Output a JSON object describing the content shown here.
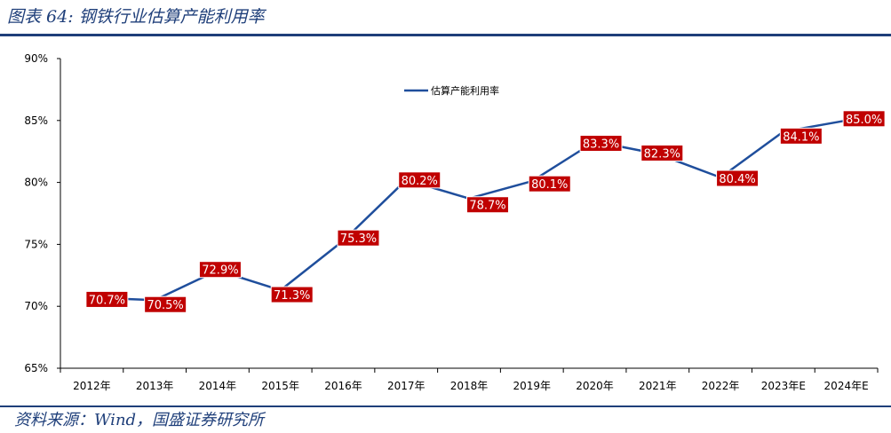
{
  "figure": {
    "title": "图表 64:  钢铁行业估算产能利用率",
    "source": "资料来源：Wind，国盛证券研究所"
  },
  "colors": {
    "line": "#1f4e9c",
    "label_bg": "#c00000",
    "label_border": "#ffffff",
    "rule": "#1f3f7a"
  },
  "chart_data": {
    "type": "line",
    "title": "",
    "xlabel": "",
    "ylabel": "",
    "categories": [
      "2012年",
      "2013年",
      "2014年",
      "2015年",
      "2016年",
      "2017年",
      "2018年",
      "2019年",
      "2020年",
      "2021年",
      "2022年",
      "2023年E",
      "2024年E"
    ],
    "series": [
      {
        "name": "估算产能利用率",
        "values": [
          70.7,
          70.5,
          72.9,
          71.3,
          75.3,
          80.2,
          78.7,
          80.1,
          83.3,
          82.3,
          80.4,
          84.1,
          85.0
        ],
        "labels": [
          "70.7%",
          "70.5%",
          "72.9%",
          "71.3%",
          "75.3%",
          "80.2%",
          "78.7%",
          "80.1%",
          "83.3%",
          "82.3%",
          "80.4%",
          "84.1%",
          "85.0%"
        ]
      }
    ],
    "ylim": [
      65,
      90
    ],
    "yticks": [
      65,
      70,
      75,
      80,
      85,
      90
    ],
    "ytick_labels": [
      "65%",
      "70%",
      "75%",
      "80%",
      "85%",
      "90%"
    ],
    "grid": false,
    "legend_position": "top-center"
  }
}
